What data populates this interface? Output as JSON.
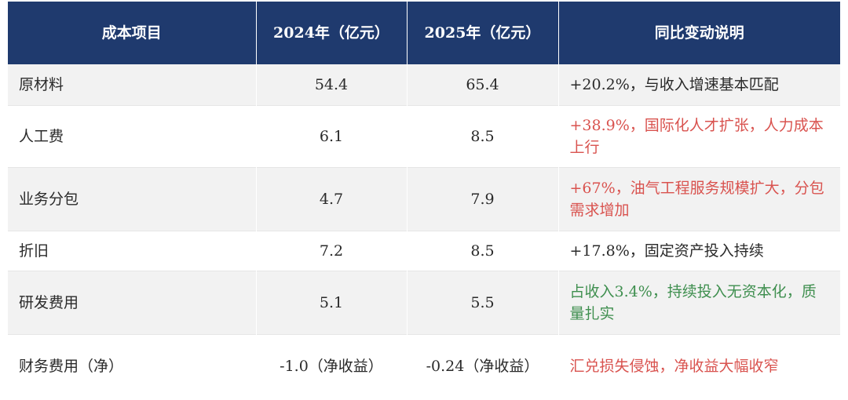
{
  "colors": {
    "header_bg": "#1f3a6e",
    "header_text": "#ffffff",
    "row_alt": "#f2f2f2",
    "normal": "#2a2a2a",
    "red": "#d9534f",
    "green": "#3f8f4f"
  },
  "table": {
    "headers": [
      "成本项目",
      "2024年（亿元）",
      "2025年（亿元）",
      "同比变动说明"
    ],
    "rows": [
      {
        "item": "原材料",
        "v2024": "54.4",
        "v2025": "65.4",
        "note": "+20.2%，与收入增速基本匹配",
        "tone": "normal"
      },
      {
        "item": "人工费",
        "v2024": "6.1",
        "v2025": "8.5",
        "note": "+38.9%，国际化人才扩张，人力成本上行",
        "tone": "red"
      },
      {
        "item": "业务分包",
        "v2024": "4.7",
        "v2025": "7.9",
        "note": "+67%，油气工程服务规模扩大，分包需求增加",
        "tone": "red"
      },
      {
        "item": "折旧",
        "v2024": "7.2",
        "v2025": "8.5",
        "note": "+17.8%，固定资产投入持续",
        "tone": "normal"
      },
      {
        "item": "研发费用",
        "v2024": "5.1",
        "v2025": "5.5",
        "note": "占收入3.4%，持续投入无资本化，质量扎实",
        "tone": "green"
      },
      {
        "item": "财务费用（净）",
        "v2024": "-1.0（净收益）",
        "v2025": "-0.24（净收益）",
        "note": "汇兑损失侵蚀，净收益大幅收窄",
        "tone": "red"
      }
    ]
  }
}
